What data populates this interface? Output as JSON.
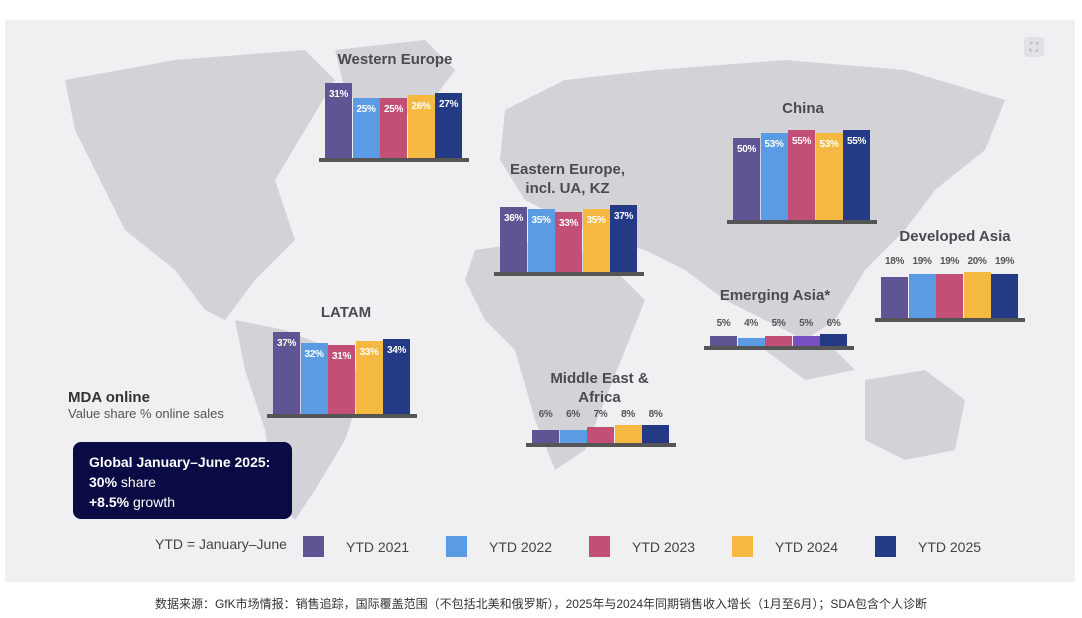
{
  "chart_data": {
    "type": "bar",
    "categories": [
      "YTD 2021",
      "YTD 2022",
      "YTD 2023",
      "YTD 2024",
      "YTD 2025"
    ],
    "colors": [
      "#5f5494",
      "#5a9be3",
      "#c44f76",
      "#f5b841",
      "#243a85"
    ],
    "series": [
      {
        "name": "Western Europe",
        "values": [
          31,
          25,
          25,
          26,
          27
        ]
      },
      {
        "name": "Eastern Europe, incl. UA, KZ",
        "values": [
          36,
          35,
          33,
          35,
          37
        ]
      },
      {
        "name": "China",
        "values": [
          50,
          53,
          55,
          53,
          55
        ]
      },
      {
        "name": "Developed Asia",
        "values": [
          18,
          19,
          19,
          20,
          19
        ]
      },
      {
        "name": "Emerging Asia*",
        "values": [
          5,
          4,
          5,
          5,
          6
        ],
        "colors": [
          "#5f5494",
          "#5a9be3",
          "#c44f76",
          "#7a4fbf",
          "#243a85"
        ]
      },
      {
        "name": "Middle East & Africa",
        "values": [
          6,
          6,
          7,
          8,
          8
        ]
      },
      {
        "name": "LATAM",
        "values": [
          37,
          32,
          31,
          33,
          34
        ]
      }
    ],
    "unit": "%",
    "title": "MDA online",
    "subtitle": "Value share % online sales",
    "legend_note": "YTD = January–June",
    "legend_position": "bottom"
  },
  "summary": {
    "title": "Global January–June 2025:",
    "share_value": "30%",
    "share_label": " share",
    "growth_value": "+8.5%",
    "growth_label": " growth"
  },
  "caption": "数据来源：GfK市场情报：销售追踪，国际覆盖范围（不包括北美和俄罗斯），2025年与2024年同期销售收入增长（1月至6月）；SDA包含个人诊断",
  "icons": {
    "expand": "expand-icon"
  }
}
